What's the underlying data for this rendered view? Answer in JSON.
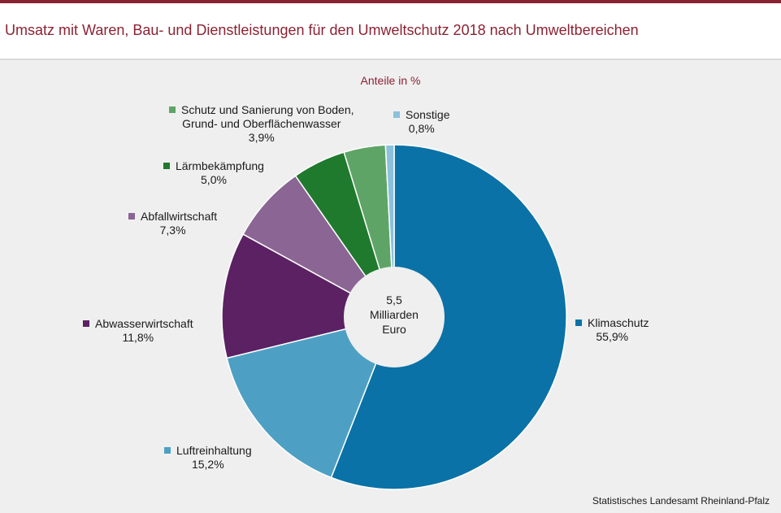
{
  "title": "Umsatz mit Waren, Bau- und Dienstleistungen für den Umweltschutz 2018 nach Umweltbereichen",
  "source": "Statistisches Landesamt Rheinland-Pfalz",
  "chart_data": {
    "type": "pie",
    "subtitle": "Anteile in %",
    "center_text": [
      "5,5",
      "Milliarden",
      "Euro"
    ],
    "slices": [
      {
        "name": "Klimaschutz",
        "value": 55.9,
        "label": "55,9%",
        "color": "#0a72a6"
      },
      {
        "name": "Luftreinhaltung",
        "value": 15.2,
        "label": "15,2%",
        "color": "#4da0c4"
      },
      {
        "name": "Abwasserwirtschaft",
        "value": 11.8,
        "label": "11,8%",
        "color": "#5b2163"
      },
      {
        "name": "Abfallwirtschaft",
        "value": 7.3,
        "label": "7,3%",
        "color": "#8b6594"
      },
      {
        "name": "Lärmbekämpfung",
        "value": 5.0,
        "label": "5,0%",
        "color": "#1f7a2e"
      },
      {
        "name": "Schutz und Sanierung von Boden, Grund- und Oberflächenwasser",
        "name_lines": [
          "Schutz und Sanierung von Boden,",
          "Grund- und Oberflächenwasser"
        ],
        "value": 3.9,
        "label": "3,9%",
        "color": "#5ea466"
      },
      {
        "name": "Sonstige",
        "value": 0.8,
        "label": "0,8%",
        "color": "#8cc1dc"
      }
    ]
  }
}
